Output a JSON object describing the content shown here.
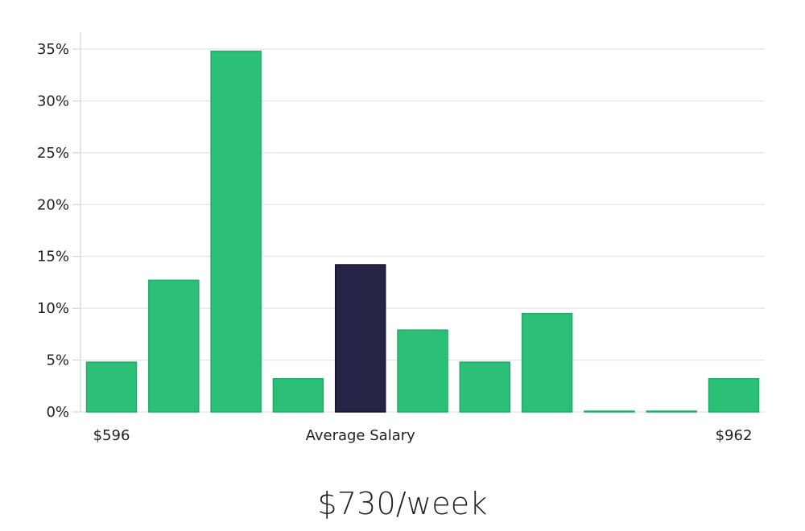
{
  "chart_data": {
    "type": "bar",
    "categories": [
      "$596",
      "",
      "",
      "",
      "Average Salary",
      "",
      "",
      "",
      "",
      "",
      "$962"
    ],
    "values": [
      4.8,
      12.7,
      34.8,
      3.2,
      14.2,
      7.9,
      4.8,
      9.5,
      0.0,
      0.0,
      3.2
    ],
    "highlight_index": 4,
    "ylim": [
      0,
      35
    ],
    "yticks": [
      0,
      5,
      10,
      15,
      20,
      25,
      30,
      35
    ],
    "ytick_labels": [
      "0%",
      "5%",
      "10%",
      "15%",
      "20%",
      "25%",
      "30%",
      "35%"
    ],
    "x_labels": [
      {
        "index": 0,
        "text": "$596"
      },
      {
        "index": 4,
        "text": "Average Salary"
      },
      {
        "index": 10,
        "text": "$962"
      }
    ],
    "grid": true,
    "colors": {
      "bar": "#2bbf78",
      "bar_edge": "#20ad69",
      "highlight": "#262444",
      "highlight_edge": "#14132a",
      "grid": "#dedede",
      "axis": "#cccccc",
      "text": "#1f1f2a"
    }
  },
  "salary": {
    "value": "$730/week"
  }
}
